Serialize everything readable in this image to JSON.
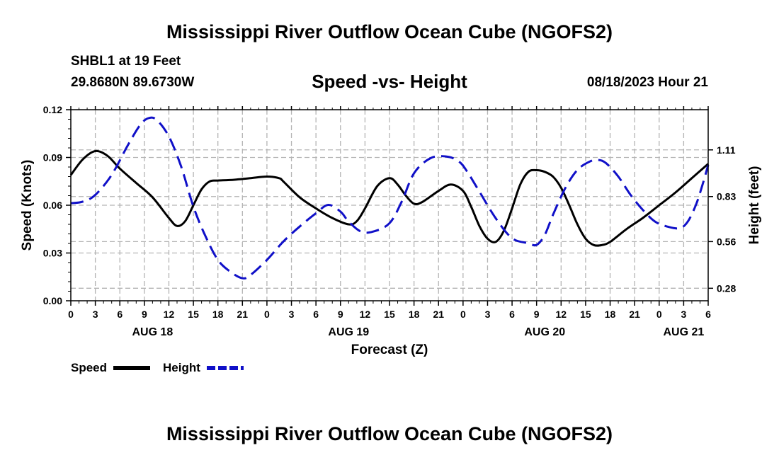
{
  "header": {
    "title": "Mississippi River Outflow Ocean Cube (NGOFS2)",
    "station": "SHBL1 at 19 Feet",
    "coords": "29.8680N  89.6730W",
    "subtitle": "Speed -vs- Height",
    "datetime": "08/18/2023 Hour 21"
  },
  "footer": {
    "title": "Mississippi River Outflow Ocean Cube (NGOFS2)"
  },
  "chart_data": {
    "type": "line",
    "xlabel": "Forecast (Z)",
    "ylabel_left": "Speed (Knots)",
    "ylabel_right": "Height (feet)",
    "x_unit": "hours since Aug 18 00Z",
    "xlim": [
      0,
      78
    ],
    "ylim_left": [
      0,
      0.12
    ],
    "ylim_right": [
      0.205,
      1.351
    ],
    "x_ticks": [
      {
        "x": 0,
        "label": "0"
      },
      {
        "x": 3,
        "label": "3"
      },
      {
        "x": 6,
        "label": "6"
      },
      {
        "x": 9,
        "label": "9"
      },
      {
        "x": 12,
        "label": "12"
      },
      {
        "x": 15,
        "label": "15"
      },
      {
        "x": 18,
        "label": "18"
      },
      {
        "x": 21,
        "label": "21"
      },
      {
        "x": 24,
        "label": "0"
      },
      {
        "x": 27,
        "label": "3"
      },
      {
        "x": 30,
        "label": "6"
      },
      {
        "x": 33,
        "label": "9"
      },
      {
        "x": 36,
        "label": "12"
      },
      {
        "x": 39,
        "label": "15"
      },
      {
        "x": 42,
        "label": "18"
      },
      {
        "x": 45,
        "label": "21"
      },
      {
        "x": 48,
        "label": "0"
      },
      {
        "x": 51,
        "label": "3"
      },
      {
        "x": 54,
        "label": "6"
      },
      {
        "x": 57,
        "label": "9"
      },
      {
        "x": 60,
        "label": "12"
      },
      {
        "x": 63,
        "label": "15"
      },
      {
        "x": 66,
        "label": "18"
      },
      {
        "x": 69,
        "label": "21"
      },
      {
        "x": 72,
        "label": "0"
      },
      {
        "x": 75,
        "label": "3"
      },
      {
        "x": 78,
        "label": "6"
      }
    ],
    "day_labels": [
      {
        "x": 10,
        "label": "AUG 18"
      },
      {
        "x": 34,
        "label": "AUG 19"
      },
      {
        "x": 58,
        "label": "AUG 20"
      },
      {
        "x": 75,
        "label": "AUG 21"
      }
    ],
    "y_ticks_left": [
      {
        "value": 0.0,
        "label": "0.00"
      },
      {
        "value": 0.03,
        "label": "0.03"
      },
      {
        "value": 0.06,
        "label": "0.06"
      },
      {
        "value": 0.09,
        "label": "0.09"
      },
      {
        "value": 0.12,
        "label": "0.12"
      }
    ],
    "y_ticks_right": [
      {
        "value": 0.28,
        "label": "0.28"
      },
      {
        "value": 0.56,
        "label": "0.56"
      },
      {
        "value": 0.83,
        "label": "0.83"
      },
      {
        "value": 1.11,
        "label": "1.11"
      }
    ],
    "series": [
      {
        "name": "Speed",
        "axis": "left",
        "color": "#000000",
        "dash": "solid",
        "points": [
          [
            0,
            0.079
          ],
          [
            1.5,
            0.089
          ],
          [
            3,
            0.094
          ],
          [
            4.5,
            0.091
          ],
          [
            6,
            0.083
          ],
          [
            8,
            0.074
          ],
          [
            10,
            0.065
          ],
          [
            12,
            0.052
          ],
          [
            13,
            0.047
          ],
          [
            14,
            0.05
          ],
          [
            15,
            0.06
          ],
          [
            16,
            0.07
          ],
          [
            17,
            0.075
          ],
          [
            18,
            0.0755
          ],
          [
            20,
            0.076
          ],
          [
            22,
            0.077
          ],
          [
            24,
            0.078
          ],
          [
            25.5,
            0.077
          ],
          [
            26,
            0.075
          ],
          [
            28,
            0.065
          ],
          [
            30,
            0.058
          ],
          [
            32,
            0.052
          ],
          [
            34,
            0.048
          ],
          [
            35,
            0.05
          ],
          [
            36,
            0.058
          ],
          [
            37.5,
            0.072
          ],
          [
            39,
            0.077
          ],
          [
            40,
            0.073
          ],
          [
            41,
            0.066
          ],
          [
            42,
            0.061
          ],
          [
            43,
            0.062
          ],
          [
            45,
            0.069
          ],
          [
            46.5,
            0.073
          ],
          [
            48,
            0.069
          ],
          [
            49,
            0.059
          ],
          [
            50,
            0.047
          ],
          [
            51,
            0.039
          ],
          [
            52,
            0.037
          ],
          [
            53,
            0.044
          ],
          [
            54,
            0.058
          ],
          [
            55,
            0.073
          ],
          [
            56,
            0.081
          ],
          [
            57,
            0.082
          ],
          [
            58,
            0.081
          ],
          [
            59,
            0.078
          ],
          [
            60,
            0.071
          ],
          [
            61,
            0.06
          ],
          [
            62,
            0.048
          ],
          [
            63,
            0.039
          ],
          [
            64,
            0.035
          ],
          [
            65,
            0.035
          ],
          [
            66,
            0.037
          ],
          [
            68,
            0.045
          ],
          [
            70,
            0.052
          ],
          [
            72,
            0.06
          ],
          [
            74,
            0.068
          ],
          [
            76,
            0.077
          ],
          [
            78,
            0.086
          ]
        ]
      },
      {
        "name": "Height",
        "axis": "right",
        "color": "#1010c8",
        "dash": "dashed",
        "points": [
          [
            0,
            0.79
          ],
          [
            1.5,
            0.8
          ],
          [
            3,
            0.84
          ],
          [
            5,
            0.96
          ],
          [
            7,
            1.14
          ],
          [
            8.5,
            1.26
          ],
          [
            9.5,
            1.3
          ],
          [
            10.5,
            1.29
          ],
          [
            12,
            1.19
          ],
          [
            13.5,
            1.01
          ],
          [
            15,
            0.77
          ],
          [
            16.5,
            0.59
          ],
          [
            18,
            0.45
          ],
          [
            19.5,
            0.38
          ],
          [
            21,
            0.34
          ],
          [
            22,
            0.36
          ],
          [
            24,
            0.45
          ],
          [
            26,
            0.56
          ],
          [
            28,
            0.65
          ],
          [
            30,
            0.73
          ],
          [
            31.5,
            0.78
          ],
          [
            33,
            0.74
          ],
          [
            34,
            0.68
          ],
          [
            35.5,
            0.62
          ],
          [
            37,
            0.62
          ],
          [
            39,
            0.67
          ],
          [
            40.5,
            0.8
          ],
          [
            42,
            0.97
          ],
          [
            44,
            1.06
          ],
          [
            46,
            1.07
          ],
          [
            47.5,
            1.04
          ],
          [
            48.5,
            0.98
          ],
          [
            50,
            0.86
          ],
          [
            52,
            0.7
          ],
          [
            54,
            0.58
          ],
          [
            56,
            0.55
          ],
          [
            57,
            0.54
          ],
          [
            58,
            0.6
          ],
          [
            59,
            0.72
          ],
          [
            60.5,
            0.88
          ],
          [
            62,
            0.99
          ],
          [
            63.5,
            1.04
          ],
          [
            64.5,
            1.05
          ],
          [
            65.5,
            1.03
          ],
          [
            67,
            0.95
          ],
          [
            68.5,
            0.84
          ],
          [
            70,
            0.75
          ],
          [
            71.5,
            0.68
          ],
          [
            73,
            0.65
          ],
          [
            74.5,
            0.64
          ],
          [
            75.5,
            0.68
          ],
          [
            76.5,
            0.78
          ],
          [
            77.3,
            0.9
          ],
          [
            78,
            1.02
          ]
        ]
      }
    ],
    "legend": {
      "placement": "bottom-left",
      "entries": [
        {
          "label": "Speed",
          "color": "#000000",
          "dash": "solid"
        },
        {
          "label": "Height",
          "color": "#1010c8",
          "dash": "dashed"
        }
      ]
    }
  }
}
